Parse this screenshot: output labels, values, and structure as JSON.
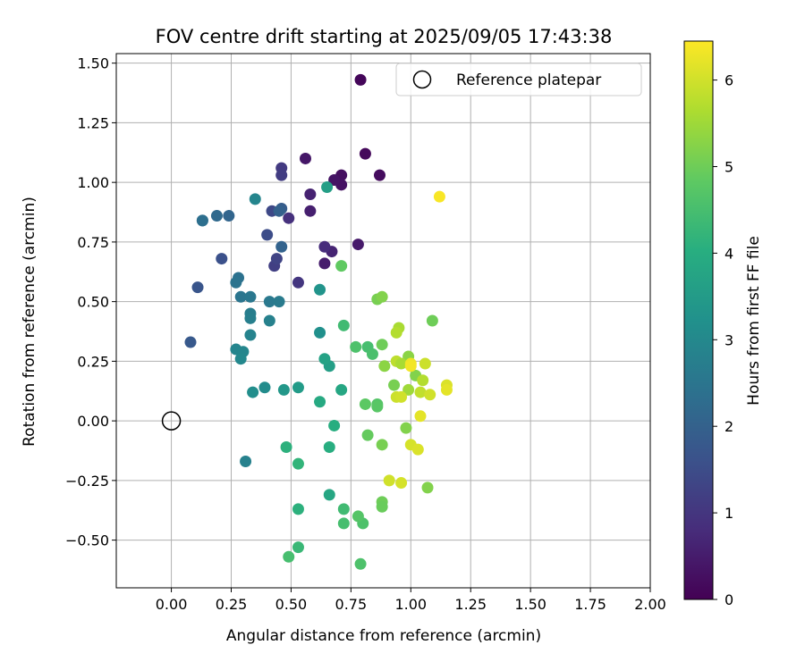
{
  "chart_data": {
    "type": "scatter",
    "title": "FOV centre drift starting at 2025/09/05 17:43:38",
    "xlabel": "Angular distance from reference (arcmin)",
    "ylabel": "Rotation from reference (arcmin)",
    "xlim": [
      -0.23,
      2.0
    ],
    "ylim": [
      -0.7,
      1.54
    ],
    "x_ticks": [
      0.0,
      0.25,
      0.5,
      0.75,
      1.0,
      1.25,
      1.5,
      1.75,
      2.0
    ],
    "x_tick_labels": [
      "0.00",
      "0.25",
      "0.50",
      "0.75",
      "1.00",
      "1.25",
      "1.50",
      "1.75",
      "2.00"
    ],
    "y_ticks": [
      -0.5,
      -0.25,
      0.0,
      0.25,
      0.5,
      0.75,
      1.0,
      1.25,
      1.5
    ],
    "y_tick_labels": [
      "−0.50",
      "−0.25",
      "0.00",
      "0.25",
      "0.50",
      "0.75",
      "1.00",
      "1.25",
      "1.50"
    ],
    "grid": true,
    "legend": {
      "placement": "top-right",
      "entries": [
        "Reference platepar"
      ]
    },
    "colorbar": {
      "label": "Hours from first FF file",
      "colormap": "viridis",
      "range": [
        0,
        6.45
      ],
      "ticks": [
        0,
        1,
        2,
        3,
        4,
        5,
        6
      ],
      "tick_labels": [
        "0",
        "1",
        "2",
        "3",
        "4",
        "5",
        "6"
      ]
    },
    "reference_point": {
      "x": 0.0,
      "y": 0.0,
      "label": "Reference platepar"
    },
    "points": [
      {
        "x": 0.79,
        "y": 1.43,
        "c": 0.1
      },
      {
        "x": 0.81,
        "y": 1.12,
        "c": 0.15
      },
      {
        "x": 0.87,
        "y": 1.03,
        "c": 0.2
      },
      {
        "x": 0.71,
        "y": 1.03,
        "c": 0.25
      },
      {
        "x": 0.71,
        "y": 0.99,
        "c": 0.3
      },
      {
        "x": 0.68,
        "y": 1.01,
        "c": 0.35
      },
      {
        "x": 0.56,
        "y": 1.1,
        "c": 0.4
      },
      {
        "x": 0.78,
        "y": 0.74,
        "c": 0.45
      },
      {
        "x": 0.64,
        "y": 0.66,
        "c": 0.5
      },
      {
        "x": 0.58,
        "y": 0.88,
        "c": 0.55
      },
      {
        "x": 0.58,
        "y": 0.95,
        "c": 0.6
      },
      {
        "x": 0.67,
        "y": 0.71,
        "c": 0.65
      },
      {
        "x": 0.64,
        "y": 0.73,
        "c": 0.8
      },
      {
        "x": 0.49,
        "y": 0.85,
        "c": 0.9
      },
      {
        "x": 0.53,
        "y": 0.58,
        "c": 1.0
      },
      {
        "x": 0.46,
        "y": 1.06,
        "c": 1.1
      },
      {
        "x": 0.46,
        "y": 1.03,
        "c": 1.15
      },
      {
        "x": 0.43,
        "y": 0.65,
        "c": 1.2
      },
      {
        "x": 0.44,
        "y": 0.68,
        "c": 1.3
      },
      {
        "x": 0.42,
        "y": 0.88,
        "c": 1.4
      },
      {
        "x": 0.4,
        "y": 0.78,
        "c": 1.5
      },
      {
        "x": 0.21,
        "y": 0.68,
        "c": 1.6
      },
      {
        "x": 0.11,
        "y": 0.56,
        "c": 1.7
      },
      {
        "x": 0.08,
        "y": 0.33,
        "c": 1.8
      },
      {
        "x": 0.46,
        "y": 0.89,
        "c": 1.9
      },
      {
        "x": 0.45,
        "y": 0.88,
        "c": 2.0
      },
      {
        "x": 0.46,
        "y": 0.73,
        "c": 2.05
      },
      {
        "x": 0.24,
        "y": 0.86,
        "c": 2.1
      },
      {
        "x": 0.19,
        "y": 0.86,
        "c": 2.2
      },
      {
        "x": 0.13,
        "y": 0.84,
        "c": 2.3
      },
      {
        "x": 0.13,
        "y": 0.84,
        "c": 2.35
      },
      {
        "x": 0.28,
        "y": 0.6,
        "c": 2.4
      },
      {
        "x": 0.27,
        "y": 0.58,
        "c": 2.45
      },
      {
        "x": 0.29,
        "y": 0.52,
        "c": 2.5
      },
      {
        "x": 0.33,
        "y": 0.52,
        "c": 2.55
      },
      {
        "x": 0.41,
        "y": 0.5,
        "c": 2.6
      },
      {
        "x": 0.45,
        "y": 0.5,
        "c": 2.65
      },
      {
        "x": 0.33,
        "y": 0.45,
        "c": 2.7
      },
      {
        "x": 0.33,
        "y": 0.43,
        "c": 2.75
      },
      {
        "x": 0.41,
        "y": 0.42,
        "c": 2.8
      },
      {
        "x": 0.33,
        "y": 0.36,
        "c": 2.85
      },
      {
        "x": 0.27,
        "y": 0.3,
        "c": 2.9
      },
      {
        "x": 0.3,
        "y": 0.29,
        "c": 2.95
      },
      {
        "x": 0.29,
        "y": 0.26,
        "c": 3.0
      },
      {
        "x": 0.35,
        "y": 0.93,
        "c": 2.9
      },
      {
        "x": 0.31,
        "y": -0.17,
        "c": 2.8
      },
      {
        "x": 0.39,
        "y": 0.14,
        "c": 3.1
      },
      {
        "x": 0.34,
        "y": 0.12,
        "c": 3.15
      },
      {
        "x": 0.62,
        "y": 0.37,
        "c": 3.2
      },
      {
        "x": 0.62,
        "y": 0.55,
        "c": 3.3
      },
      {
        "x": 0.47,
        "y": 0.13,
        "c": 3.4
      },
      {
        "x": 0.53,
        "y": 0.14,
        "c": 3.5
      },
      {
        "x": 0.65,
        "y": 0.98,
        "c": 3.6
      },
      {
        "x": 0.66,
        "y": 0.23,
        "c": 3.6
      },
      {
        "x": 0.64,
        "y": 0.26,
        "c": 3.7
      },
      {
        "x": 0.71,
        "y": 0.13,
        "c": 3.8
      },
      {
        "x": 0.62,
        "y": 0.08,
        "c": 3.9
      },
      {
        "x": 0.68,
        "y": -0.02,
        "c": 4.0
      },
      {
        "x": 0.66,
        "y": -0.11,
        "c": 4.0
      },
      {
        "x": 0.66,
        "y": -0.31,
        "c": 3.8
      },
      {
        "x": 0.48,
        "y": -0.11,
        "c": 4.1
      },
      {
        "x": 0.53,
        "y": -0.18,
        "c": 4.2
      },
      {
        "x": 0.53,
        "y": -0.37,
        "c": 4.1
      },
      {
        "x": 0.53,
        "y": -0.53,
        "c": 4.3
      },
      {
        "x": 0.49,
        "y": -0.57,
        "c": 4.5
      },
      {
        "x": 0.72,
        "y": -0.37,
        "c": 4.4
      },
      {
        "x": 0.72,
        "y": -0.43,
        "c": 4.5
      },
      {
        "x": 0.8,
        "y": -0.43,
        "c": 4.6
      },
      {
        "x": 0.78,
        "y": -0.4,
        "c": 4.7
      },
      {
        "x": 0.79,
        "y": -0.6,
        "c": 4.6
      },
      {
        "x": 0.72,
        "y": 0.4,
        "c": 4.4
      },
      {
        "x": 0.77,
        "y": 0.31,
        "c": 4.6
      },
      {
        "x": 0.82,
        "y": 0.31,
        "c": 4.5
      },
      {
        "x": 0.84,
        "y": 0.28,
        "c": 4.55
      },
      {
        "x": 0.81,
        "y": 0.07,
        "c": 4.8
      },
      {
        "x": 0.86,
        "y": 0.07,
        "c": 4.7
      },
      {
        "x": 0.86,
        "y": 0.06,
        "c": 4.75
      },
      {
        "x": 0.82,
        "y": -0.06,
        "c": 4.9
      },
      {
        "x": 0.88,
        "y": -0.1,
        "c": 5.1
      },
      {
        "x": 0.88,
        "y": -0.34,
        "c": 5.0
      },
      {
        "x": 0.88,
        "y": -0.36,
        "c": 4.95
      },
      {
        "x": 0.71,
        "y": 0.65,
        "c": 4.85
      },
      {
        "x": 0.86,
        "y": 0.51,
        "c": 5.1
      },
      {
        "x": 0.88,
        "y": 0.52,
        "c": 5.2
      },
      {
        "x": 0.88,
        "y": 0.32,
        "c": 5.0
      },
      {
        "x": 0.89,
        "y": 0.23,
        "c": 5.3
      },
      {
        "x": 0.93,
        "y": 0.15,
        "c": 5.1
      },
      {
        "x": 0.98,
        "y": -0.03,
        "c": 5.2
      },
      {
        "x": 1.09,
        "y": 0.42,
        "c": 5.0
      },
      {
        "x": 1.02,
        "y": 0.19,
        "c": 5.2
      },
      {
        "x": 1.07,
        "y": -0.28,
        "c": 5.2
      },
      {
        "x": 0.99,
        "y": 0.27,
        "c": 5.3
      },
      {
        "x": 0.95,
        "y": 0.39,
        "c": 5.6
      },
      {
        "x": 0.94,
        "y": 0.37,
        "c": 5.7
      },
      {
        "x": 0.94,
        "y": 0.25,
        "c": 5.8
      },
      {
        "x": 0.96,
        "y": 0.24,
        "c": 5.6
      },
      {
        "x": 0.99,
        "y": 0.13,
        "c": 5.5
      },
      {
        "x": 1.05,
        "y": 0.17,
        "c": 5.7
      },
      {
        "x": 1.04,
        "y": 0.12,
        "c": 5.85
      },
      {
        "x": 1.06,
        "y": 0.24,
        "c": 5.95
      },
      {
        "x": 1.08,
        "y": 0.11,
        "c": 6.0
      },
      {
        "x": 0.94,
        "y": 0.1,
        "c": 5.95
      },
      {
        "x": 0.96,
        "y": 0.1,
        "c": 6.0
      },
      {
        "x": 1.0,
        "y": -0.1,
        "c": 6.05
      },
      {
        "x": 1.03,
        "y": -0.12,
        "c": 6.1
      },
      {
        "x": 0.91,
        "y": -0.25,
        "c": 6.0
      },
      {
        "x": 0.96,
        "y": -0.26,
        "c": 6.05
      },
      {
        "x": 1.04,
        "y": 0.02,
        "c": 6.2
      },
      {
        "x": 1.0,
        "y": 0.24,
        "c": 6.3
      },
      {
        "x": 1.0,
        "y": 0.23,
        "c": 6.35
      },
      {
        "x": 1.15,
        "y": 0.15,
        "c": 6.1
      },
      {
        "x": 1.15,
        "y": 0.13,
        "c": 6.2
      },
      {
        "x": 1.12,
        "y": 0.94,
        "c": 6.4
      }
    ]
  }
}
